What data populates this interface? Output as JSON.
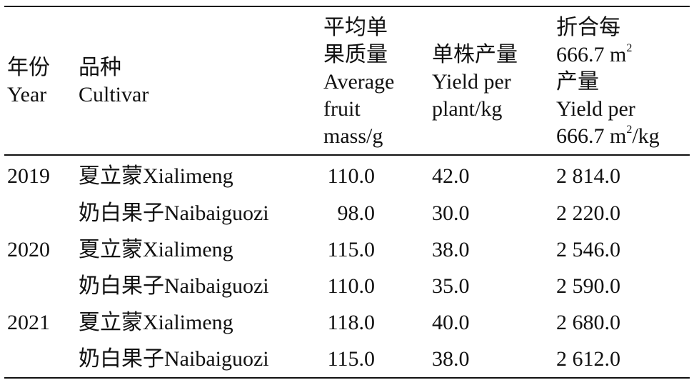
{
  "table": {
    "headers": {
      "year": {
        "zh": "年份",
        "en": "Year"
      },
      "cultivar": {
        "zh": "品种",
        "en": "Cultivar"
      },
      "mass": {
        "zh1": "平均单",
        "zh2": "果质量",
        "en1": "Average",
        "en2": "fruit",
        "en3": "mass/g"
      },
      "plant": {
        "zh": "单株产量",
        "en1": "Yield per",
        "en2": "plant/kg"
      },
      "area": {
        "zh1": "折合每",
        "l2a": "666.7 m",
        "l2sup": "2",
        "zh3": "产量",
        "en1": "Yield per",
        "l5a": "666.7 m",
        "l5sup": "2",
        "l5b": "/kg"
      }
    },
    "rows": [
      {
        "year": "2019",
        "cultivar": "夏立蒙Xialimeng",
        "mass": "110.0",
        "plant": "42.0",
        "area": "2 814.0"
      },
      {
        "year": "",
        "cultivar": "奶白果子Naibaiguozi",
        "mass": "98.0",
        "plant": "30.0",
        "area": "2 220.0"
      },
      {
        "year": "2020",
        "cultivar": "夏立蒙Xialimeng",
        "mass": "115.0",
        "plant": "38.0",
        "area": "2 546.0"
      },
      {
        "year": "",
        "cultivar": "奶白果子Naibaiguozi",
        "mass": "110.0",
        "plant": "35.0",
        "area": "2 590.0"
      },
      {
        "year": "2021",
        "cultivar": "夏立蒙Xialimeng",
        "mass": "118.0",
        "plant": "40.0",
        "area": "2 680.0"
      },
      {
        "year": "",
        "cultivar": "奶白果子Naibaiguozi",
        "mass": "115.0",
        "plant": "38.0",
        "area": "2 612.0"
      }
    ]
  }
}
